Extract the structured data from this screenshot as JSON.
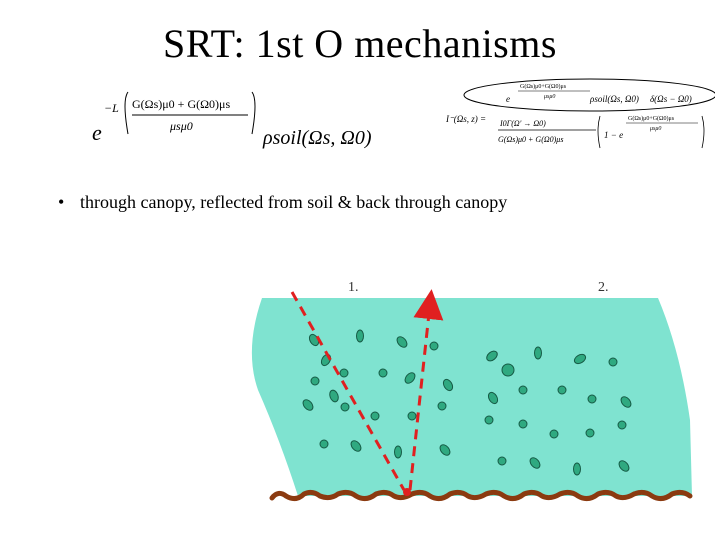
{
  "slide": {
    "title": "SRT: 1st O mechanisms",
    "bullet": "through canopy, reflected from soil & back through canopy",
    "bullet_marker": "•"
  },
  "equation_left": {
    "base": "e",
    "exponent_sign": "−L",
    "numerator": "G(Ωs)μ0 + G(Ω0)μs",
    "denominator": "μsμ0",
    "factor": "ρsoil(Ωs, Ω0)"
  },
  "equation_right": {
    "lhs": "I⁻(Ωs, z) =",
    "factor_top": "ρsoil(Ωs, Ω0)",
    "delta": "δ(Ωs − Ω0)",
    "fraction_numerator": "I0Γ(Ω' → Ω0)",
    "fraction_denominator": "G(Ωs)μ0 + G(Ω0)μs",
    "bracket_term": "1 − e"
  },
  "diagram": {
    "label_1": "1.",
    "label_2": "2.",
    "colors": {
      "canopy": "#7fe3d0",
      "leaf": "#2fa980",
      "leaf_stroke": "#165b45",
      "soil": "#8b3a10",
      "ray": "#e02020"
    }
  }
}
